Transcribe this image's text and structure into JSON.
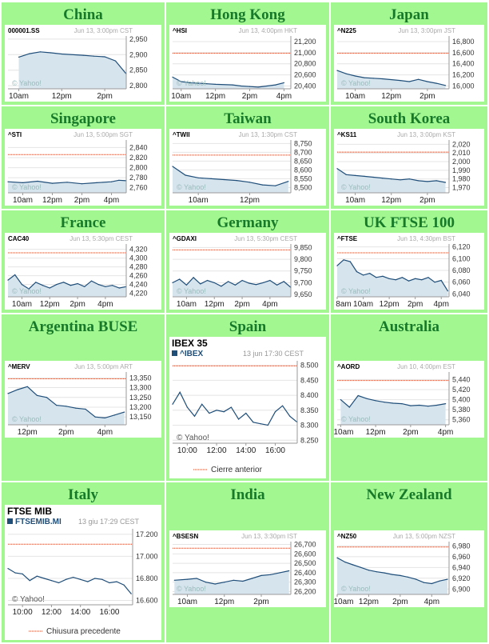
{
  "page": {
    "background": "#ffffff",
    "cell_color": "#a2f790",
    "title_color": "#177a2a",
    "line_color": "#1f4e79",
    "fill_color": "#d6e4ee",
    "prev_close_color": "#e03c1e",
    "grid_color": "#e4e4e4"
  },
  "charts": [
    {
      "region": "China",
      "symbol": "000001.SS",
      "stamp": "Jun 13, 3:00pm CST",
      "watermark": "© Yahoo!",
      "chart_data": {
        "type": "area",
        "x": [
          10,
          10.5,
          11,
          11.5,
          12,
          13,
          13.5,
          14,
          14.5,
          15
        ],
        "values": [
          2892,
          2903,
          2909,
          2906,
          2902,
          2898,
          2895,
          2893,
          2880,
          2838
        ],
        "ylim": [
          2790,
          2960
        ],
        "yticks": [
          "2,950",
          "2,900",
          "2,850",
          "2,800"
        ],
        "ytick_values": [
          2950,
          2900,
          2850,
          2800
        ],
        "xticks": [
          "10am",
          "12pm",
          "2pm"
        ],
        "xtick_values": [
          10,
          12,
          14
        ],
        "xlim": [
          9.5,
          15
        ],
        "gaps": [
          [
            11.5,
            13
          ]
        ],
        "prev_close": null
      }
    },
    {
      "region": "Hong Kong",
      "symbol": "^HSI",
      "stamp": "Jun 13, 4:00pm HKT",
      "watermark": "© Yahoo!",
      "chart_data": {
        "type": "area",
        "x": [
          9.5,
          10,
          10.5,
          11,
          11.5,
          12,
          13,
          13.5,
          14,
          14.5,
          15,
          15.5,
          16
        ],
        "values": [
          20560,
          20480,
          20460,
          20450,
          20440,
          20430,
          20420,
          20400,
          20390,
          20380,
          20400,
          20420,
          20460
        ],
        "ylim": [
          20350,
          21300
        ],
        "yticks": [
          "21,200",
          "21,000",
          "20,800",
          "20,600",
          "20,400"
        ],
        "ytick_values": [
          21200,
          21000,
          20800,
          20600,
          20400
        ],
        "xticks": [
          "10am",
          "12pm",
          "2pm",
          "4pm"
        ],
        "xtick_values": [
          10,
          12,
          14,
          16
        ],
        "xlim": [
          9.5,
          16.4
        ],
        "gaps": [
          [
            12,
            13
          ]
        ],
        "prev_close": 20990
      }
    },
    {
      "region": "Japan",
      "symbol": "^N225",
      "stamp": "Jun 13, 3:00pm JST",
      "watermark": "© Yahoo!",
      "chart_data": {
        "type": "area",
        "x": [
          9,
          9.5,
          10,
          10.5,
          11,
          11.5,
          12.5,
          13,
          13.5,
          14,
          14.5,
          15
        ],
        "values": [
          16280,
          16220,
          16180,
          16150,
          16140,
          16130,
          16100,
          16080,
          16120,
          16080,
          16050,
          16010
        ],
        "ylim": [
          15950,
          16900
        ],
        "yticks": [
          "16,800",
          "16,600",
          "16,400",
          "16,200",
          "16,000"
        ],
        "ytick_values": [
          16800,
          16600,
          16400,
          16200,
          16000
        ],
        "xticks": [
          "10am",
          "12pm",
          "2pm"
        ],
        "xtick_values": [
          10,
          12,
          14
        ],
        "xlim": [
          9,
          15.2
        ],
        "gaps": [
          [
            11.5,
            12.5
          ]
        ],
        "prev_close": 16590
      }
    },
    {
      "region": "Singapore",
      "symbol": "^STI",
      "stamp": "Jun 13, 5:00pm SGT",
      "watermark": "© Yahoo!",
      "chart_data": {
        "type": "area",
        "x": [
          9,
          10,
          11,
          12,
          13,
          14,
          15,
          16,
          16.5,
          17
        ],
        "values": [
          2772,
          2770,
          2773,
          2769,
          2771,
          2768,
          2770,
          2772,
          2775,
          2774
        ],
        "ylim": [
          2750,
          2855
        ],
        "yticks": [
          "2,840",
          "2,820",
          "2,800",
          "2,780",
          "2,760"
        ],
        "ytick_values": [
          2840,
          2820,
          2800,
          2780,
          2760
        ],
        "xticks": [
          "10am",
          "12pm",
          "2pm",
          "4pm"
        ],
        "xtick_values": [
          10,
          12,
          14,
          16
        ],
        "xlim": [
          9,
          17
        ],
        "gaps": [],
        "prev_close": 2826
      }
    },
    {
      "region": "Taiwan",
      "symbol": "^TWII",
      "stamp": "Jun 13, 1:30pm CST",
      "watermark": "© Yahoo!",
      "chart_data": {
        "type": "area",
        "x": [
          9,
          9.5,
          10,
          10.5,
          11,
          11.5,
          12,
          12.5,
          13,
          13.5
        ],
        "values": [
          8620,
          8570,
          8555,
          8550,
          8545,
          8540,
          8530,
          8515,
          8510,
          8535
        ],
        "ylim": [
          8470,
          8770
        ],
        "yticks": [
          "8,750",
          "8,700",
          "8,650",
          "8,600",
          "8,550",
          "8,500"
        ],
        "ytick_values": [
          8750,
          8700,
          8650,
          8600,
          8550,
          8500
        ],
        "xticks": [
          "10am",
          "12pm"
        ],
        "xtick_values": [
          10,
          12
        ],
        "xlim": [
          9,
          13.6
        ],
        "gaps": [],
        "prev_close": 8684
      }
    },
    {
      "region": "South Korea",
      "symbol": "^KS11",
      "stamp": "Jun 13, 3:00pm KST",
      "watermark": "© Yahoo!",
      "chart_data": {
        "type": "area",
        "x": [
          9,
          9.5,
          10,
          10.5,
          11,
          11.5,
          12,
          12.5,
          13,
          13.5,
          14,
          14.5,
          15
        ],
        "values": [
          1992,
          1985,
          1984,
          1983,
          1982,
          1981,
          1980,
          1979,
          1980,
          1978,
          1977,
          1978,
          1976
        ],
        "ylim": [
          1964,
          2025
        ],
        "yticks": [
          "2,020",
          "2,010",
          "2,000",
          "1,990",
          "1,980",
          "1,970"
        ],
        "ytick_values": [
          2020,
          2010,
          2000,
          1990,
          1980,
          1970
        ],
        "xticks": [
          "10am",
          "12pm",
          "2pm"
        ],
        "xtick_values": [
          10,
          12,
          14
        ],
        "xlim": [
          9,
          15.2
        ],
        "gaps": [],
        "prev_close": 2011
      }
    },
    {
      "region": "France",
      "symbol": "CAC40",
      "stamp": "Jun 13, 5:30pm CEST",
      "watermark": "© Yahoo!",
      "chart_data": {
        "type": "area",
        "x": [
          9,
          9.5,
          10,
          10.5,
          11,
          11.5,
          12,
          12.5,
          13,
          13.5,
          14,
          14.5,
          15,
          15.5,
          16,
          16.5,
          17,
          17.5
        ],
        "values": [
          4250,
          4262,
          4240,
          4230,
          4245,
          4238,
          4232,
          4240,
          4245,
          4238,
          4242,
          4235,
          4248,
          4240,
          4235,
          4238,
          4232,
          4235
        ],
        "ylim": [
          4212,
          4332
        ],
        "yticks": [
          "4,320",
          "4,300",
          "4,280",
          "4,260",
          "4,240",
          "4,220"
        ],
        "ytick_values": [
          4320,
          4300,
          4280,
          4260,
          4240,
          4220
        ],
        "xticks": [
          "10am",
          "12pm",
          "2pm",
          "4pm"
        ],
        "xtick_values": [
          10,
          12,
          14,
          16
        ],
        "xlim": [
          9,
          17.5
        ],
        "gaps": [],
        "prev_close": 4312
      }
    },
    {
      "region": "Germany",
      "symbol": "^GDAXI",
      "stamp": "Jun 13, 5:30pm CEST",
      "watermark": "© Yahoo!",
      "chart_data": {
        "type": "area",
        "x": [
          9,
          9.5,
          10,
          10.5,
          11,
          11.5,
          12,
          12.5,
          13,
          13.5,
          14,
          14.5,
          15,
          15.5,
          16,
          16.5,
          17,
          17.5
        ],
        "values": [
          9700,
          9715,
          9690,
          9722,
          9695,
          9710,
          9700,
          9685,
          9705,
          9690,
          9710,
          9698,
          9692,
          9700,
          9710,
          9690,
          9705,
          9680
        ],
        "ylim": [
          9640,
          9865
        ],
        "yticks": [
          "9,850",
          "9,800",
          "9,750",
          "9,700",
          "9,650"
        ],
        "ytick_values": [
          9850,
          9800,
          9750,
          9700,
          9650
        ],
        "xticks": [
          "10am",
          "12pm",
          "2pm",
          "4pm"
        ],
        "xtick_values": [
          10,
          12,
          14,
          16
        ],
        "xlim": [
          9,
          17.5
        ],
        "gaps": [],
        "prev_close": 9840
      }
    },
    {
      "region": "UK FTSE 100",
      "symbol": "^FTSE",
      "stamp": "Jun 13, 4:30pm BST",
      "watermark": "© Yahoo!",
      "chart_data": {
        "type": "area",
        "x": [
          8,
          8.5,
          9,
          9.5,
          10,
          10.5,
          11,
          11.5,
          12,
          12.5,
          13,
          13.5,
          14,
          14.5,
          15,
          15.5,
          16,
          16.5
        ],
        "values": [
          6088,
          6098,
          6095,
          6078,
          6072,
          6075,
          6068,
          6070,
          6066,
          6064,
          6068,
          6062,
          6066,
          6064,
          6068,
          6060,
          6063,
          6045
        ],
        "ylim": [
          6035,
          6125
        ],
        "yticks": [
          "6,120",
          "6,100",
          "6,080",
          "6,060",
          "6,040"
        ],
        "ytick_values": [
          6120,
          6100,
          6080,
          6060,
          6040
        ],
        "xticks": [
          "8am",
          "10am",
          "12pm",
          "2pm",
          "4pm"
        ],
        "xtick_values": [
          8,
          10,
          12,
          14,
          16
        ],
        "xlim": [
          8,
          16.6
        ],
        "gaps": [],
        "prev_close": 6110
      }
    },
    {
      "region": "Argentina BUSE",
      "symbol": "^MERV",
      "stamp": "Jun 13, 5:00pm ART",
      "watermark": "© Yahoo!",
      "chart_data": {
        "type": "area",
        "x": [
          11,
          11.5,
          12,
          12.5,
          13,
          13.5,
          14,
          14.5,
          15,
          15.5,
          16,
          16.5,
          17
        ],
        "values": [
          13270,
          13290,
          13305,
          13260,
          13250,
          13210,
          13205,
          13195,
          13190,
          13150,
          13145,
          13160,
          13175
        ],
        "ylim": [
          13110,
          13380
        ],
        "yticks": [
          "13,350",
          "13,300",
          "13,250",
          "13,200",
          "13,150"
        ],
        "ytick_values": [
          13350,
          13300,
          13250,
          13200,
          13150
        ],
        "xticks": [
          "12pm",
          "2pm",
          "4pm"
        ],
        "xtick_values": [
          12,
          14,
          16
        ],
        "xlim": [
          11,
          17.1
        ],
        "gaps": [],
        "prev_close": 13345
      }
    },
    {
      "region": "Spain",
      "symbol": "^IBEX",
      "header": "IBEX 35",
      "stamp": "13 jun 17:30 CEST",
      "watermark": "© Yahoo!",
      "legend": "Cierre anterior",
      "chart_data": {
        "type": "line",
        "x": [
          9,
          9.5,
          10,
          10.5,
          11,
          11.5,
          12,
          12.5,
          13,
          13.5,
          14,
          14.5,
          15,
          15.5,
          16,
          16.5,
          17,
          17.5
        ],
        "values": [
          8370,
          8410,
          8360,
          8330,
          8370,
          8340,
          8350,
          8345,
          8360,
          8320,
          8340,
          8310,
          8305,
          8300,
          8345,
          8365,
          8330,
          8310
        ],
        "ylim": [
          8240,
          8515
        ],
        "yticks": [
          "8.500",
          "8.450",
          "8.400",
          "8.350",
          "8.300",
          "8.250"
        ],
        "ytick_values": [
          8500,
          8450,
          8400,
          8350,
          8300,
          8250
        ],
        "xticks": [
          "10:00",
          "12:00",
          "14:00",
          "16:00"
        ],
        "xtick_values": [
          10,
          12,
          14,
          16
        ],
        "xlim": [
          9,
          17.5
        ],
        "gaps": [],
        "prev_close": 8498
      }
    },
    {
      "region": "Australia",
      "symbol": "^AORD",
      "stamp": "Jun 10, 4:00pm EST",
      "watermark": "© Yahoo!",
      "chart_data": {
        "type": "area",
        "x": [
          10,
          10.5,
          11,
          11.5,
          12,
          12.5,
          13,
          13.5,
          14,
          14.5,
          15,
          15.5,
          16
        ],
        "values": [
          5400,
          5385,
          5408,
          5402,
          5398,
          5395,
          5393,
          5392,
          5388,
          5389,
          5387,
          5389,
          5392
        ],
        "ylim": [
          5350,
          5455
        ],
        "yticks": [
          "5,440",
          "5,420",
          "5,400",
          "5,380",
          "5,360"
        ],
        "ytick_values": [
          5440,
          5420,
          5400,
          5380,
          5360
        ],
        "xticks": [
          "10am",
          "12pm",
          "2pm",
          "4pm"
        ],
        "xtick_values": [
          10,
          12,
          14,
          16
        ],
        "xlim": [
          9.8,
          16.2
        ],
        "gaps": [],
        "prev_close": 5438
      }
    },
    {
      "region": "Italy",
      "symbol": "FTSEMIB.MI",
      "header": "FTSE MIB",
      "stamp": "13 giu 17:29 CEST",
      "watermark": "© Yahoo!",
      "legend": "Chiusura precedente",
      "chart_data": {
        "type": "line",
        "x": [
          9,
          9.5,
          10,
          10.5,
          11,
          11.5,
          12,
          12.5,
          13,
          13.5,
          14,
          14.5,
          15,
          15.5,
          16,
          16.5,
          17,
          17.5
        ],
        "values": [
          16890,
          16850,
          16840,
          16780,
          16820,
          16800,
          16780,
          16760,
          16790,
          16810,
          16790,
          16770,
          16800,
          16790,
          16760,
          16770,
          16740,
          16660
        ],
        "ylim": [
          16560,
          17250
        ],
        "yticks": [
          "17.200",
          "17.000",
          "16.800",
          "16.600"
        ],
        "ytick_values": [
          17200,
          17000,
          16800,
          16600
        ],
        "xticks": [
          "10:00",
          "12:00",
          "14:00",
          "16:00"
        ],
        "xtick_values": [
          10,
          12,
          14,
          16
        ],
        "xlim": [
          9,
          17.6
        ],
        "gaps": [],
        "prev_close": 17110
      }
    },
    {
      "region": "India",
      "symbol": "^BSESN",
      "stamp": "Jun 13, 3:30pm IST",
      "watermark": "© Yahoo!",
      "chart_data": {
        "type": "area",
        "x": [
          9.3,
          10,
          10.5,
          11,
          11.5,
          12,
          12.5,
          13,
          13.5,
          14,
          14.5,
          15,
          15.5
        ],
        "values": [
          26320,
          26330,
          26340,
          26300,
          26280,
          26300,
          26320,
          26310,
          26340,
          26370,
          26380,
          26400,
          26420
        ],
        "ylim": [
          26170,
          26730
        ],
        "yticks": [
          "26,700",
          "26,600",
          "26,500",
          "26,400",
          "26,300",
          "26,200"
        ],
        "ytick_values": [
          26700,
          26600,
          26500,
          26400,
          26300,
          26200
        ],
        "xticks": [
          "10am",
          "12pm",
          "2pm"
        ],
        "xtick_values": [
          10,
          12,
          14
        ],
        "xlim": [
          9.2,
          15.6
        ],
        "gaps": [],
        "prev_close": 26660
      }
    },
    {
      "region": "New Zealand",
      "symbol": "^NZ50",
      "stamp": "Jun 13, 5:00pm NZST",
      "watermark": "© Yahoo!",
      "chart_data": {
        "type": "area",
        "x": [
          10,
          10.5,
          11,
          11.5,
          12,
          12.5,
          13,
          13.5,
          14,
          14.5,
          15,
          15.5,
          16,
          16.5,
          17
        ],
        "values": [
          6958,
          6950,
          6945,
          6940,
          6935,
          6932,
          6930,
          6927,
          6925,
          6922,
          6918,
          6912,
          6910,
          6915,
          6918
        ],
        "ylim": [
          6890,
          6988
        ],
        "yticks": [
          "6,980",
          "6,960",
          "6,940",
          "6,920",
          "6,900"
        ],
        "ytick_values": [
          6980,
          6960,
          6940,
          6920,
          6900
        ],
        "xticks": [
          "10am",
          "12pm",
          "2pm",
          "4pm"
        ],
        "xtick_values": [
          10,
          12,
          14,
          16
        ],
        "xlim": [
          10,
          17.1
        ],
        "gaps": [],
        "prev_close": 6978
      }
    }
  ]
}
